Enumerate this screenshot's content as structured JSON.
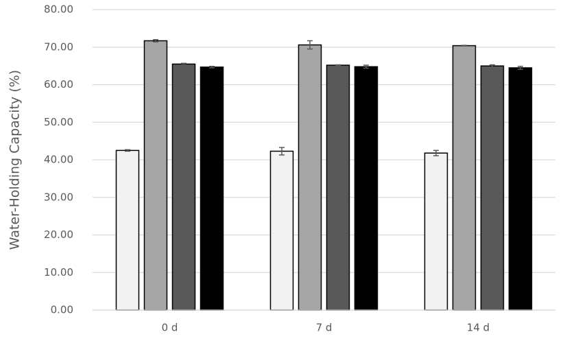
{
  "chart_data": {
    "type": "bar",
    "y_label": "Water-Holding Capacity (%)",
    "categories": [
      "0 d",
      "7 d",
      "14 d"
    ],
    "series": [
      {
        "color": "#f2f2f2",
        "values": [
          42.5,
          42.3,
          41.8
        ],
        "errors": [
          0.2,
          1.0,
          0.7
        ]
      },
      {
        "color": "#a6a6a6",
        "values": [
          71.7,
          70.6,
          70.4
        ],
        "errors": [
          0.3,
          1.1,
          0.1
        ]
      },
      {
        "color": "#595959",
        "values": [
          65.5,
          65.2,
          65.0
        ],
        "errors": [
          0.2,
          0.1,
          0.3
        ]
      },
      {
        "color": "#000000",
        "values": [
          64.7,
          64.8,
          64.5
        ],
        "errors": [
          0.2,
          0.4,
          0.4
        ]
      }
    ],
    "ylim": [
      0,
      80
    ],
    "yticks": [
      {
        "value": 0,
        "label": "0.00"
      },
      {
        "value": 10,
        "label": "10.00"
      },
      {
        "value": 20,
        "label": "20.00"
      },
      {
        "value": 30,
        "label": "30.00"
      },
      {
        "value": 40,
        "label": "40.00"
      },
      {
        "value": 50,
        "label": "50.00"
      },
      {
        "value": 60,
        "label": "60.00"
      },
      {
        "value": 70,
        "label": "70.00"
      },
      {
        "value": 80,
        "label": "80.00"
      }
    ],
    "grid": true
  }
}
